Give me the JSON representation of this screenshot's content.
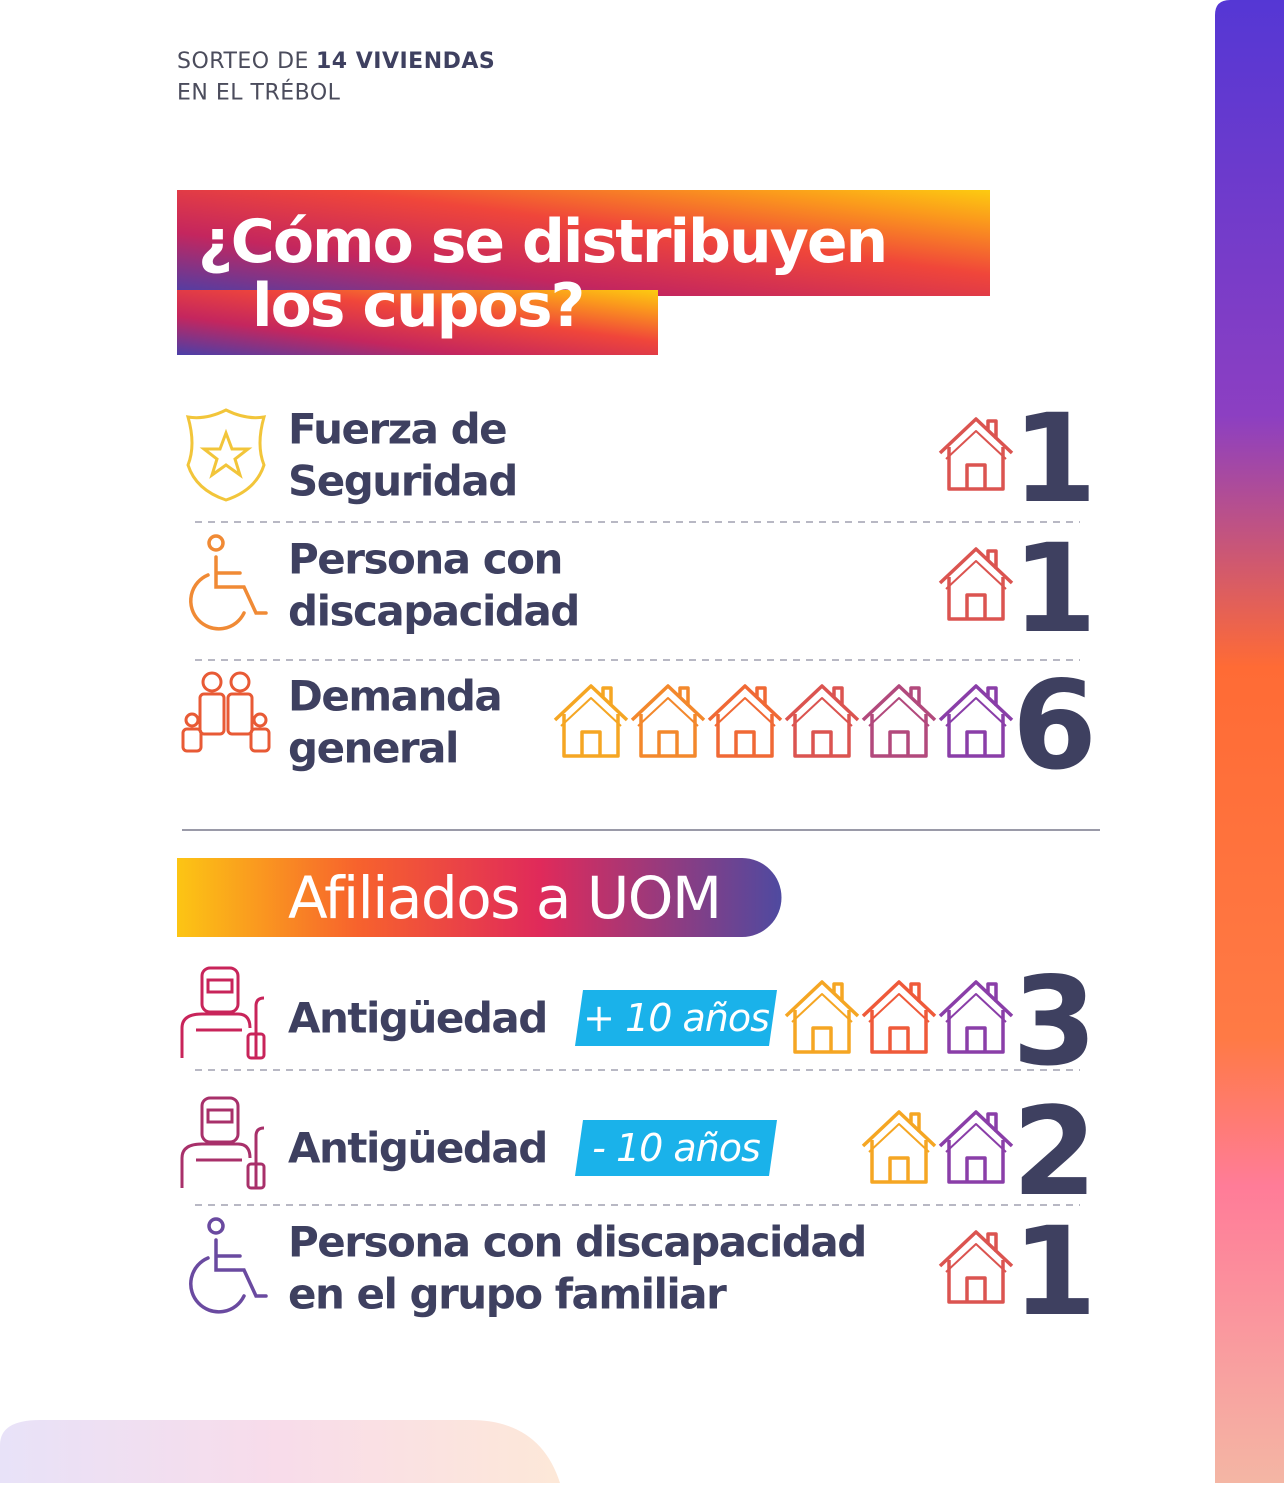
{
  "header": {
    "prefix": "SORTEO DE",
    "bold": "14 VIVIENDAS",
    "line2": "EN EL TRÉBOL"
  },
  "title": {
    "lines": [
      "¿Cómo se distribuyen",
      "los cupos?"
    ]
  },
  "groups": [
    {
      "rows": [
        {
          "label": [
            "Fuerza de",
            "Seguridad"
          ],
          "count": 1
        },
        {
          "label": [
            "Persona con",
            "discapacidad"
          ],
          "count": 1
        },
        {
          "label": [
            "Demanda",
            "general"
          ],
          "count": 6
        }
      ]
    },
    {
      "heading": "Afiliados a UOM",
      "rows": [
        {
          "label": [
            "Antigüedad"
          ],
          "badge": "+ 10 años",
          "count": 3
        },
        {
          "label": [
            "Antigüedad"
          ],
          "badge": "- 10 años",
          "count": 2
        },
        {
          "label": [
            "Persona con discapacidad",
            "en el grupo familiar"
          ],
          "count": 1
        }
      ]
    }
  ]
}
